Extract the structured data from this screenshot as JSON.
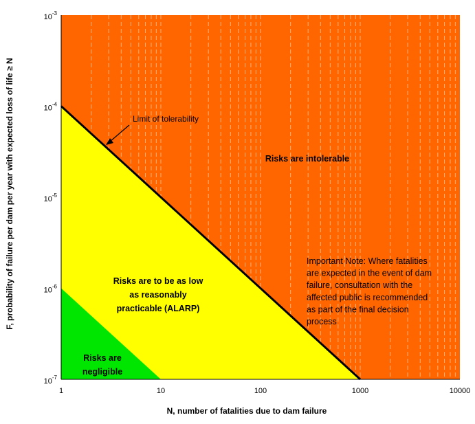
{
  "chart_data": {
    "type": "area",
    "title": "",
    "xlabel": "N, number of fatalities due to dam failure",
    "ylabel": "F, probability of failure per dam per year with expected loss of life ≥ N",
    "x_scale": "log",
    "y_scale": "log",
    "xlim": [
      1,
      10000
    ],
    "ylim": [
      1e-07,
      0.001
    ],
    "x_ticks": [
      1,
      10,
      100,
      1000,
      10000
    ],
    "x_tick_labels": [
      "1",
      "10",
      "100",
      "1000",
      "10000"
    ],
    "y_ticks": [
      1e-07,
      1e-06,
      1e-05,
      0.0001,
      0.001
    ],
    "y_tick_bases": [
      "10",
      "10",
      "10",
      "10",
      "10"
    ],
    "y_tick_exponents": [
      "-7",
      "-6",
      "-5",
      "-4",
      "-3"
    ],
    "grid": "vertical dashed",
    "series": [
      {
        "name": "Limit of tolerability",
        "x": [
          1,
          1000
        ],
        "y": [
          0.0001,
          1e-07
        ]
      },
      {
        "x": [
          1,
          10
        ],
        "y": [
          1e-06,
          1e-07
        ]
      }
    ],
    "regions": [
      {
        "label": "Risks are intolerable",
        "color": "#FF6600"
      },
      {
        "label": "Risks are to be as low as reasonably practicable (ALARP)",
        "lines": [
          "Risks are to be as low",
          "as reasonably",
          "practicable (ALARP)"
        ],
        "color": "#FFFF00"
      },
      {
        "label": "Risks are negligible",
        "lines": [
          "Risks are",
          "negligible"
        ],
        "color": "#00E600"
      }
    ],
    "annotations": [
      {
        "text": "Limit of tolerability"
      },
      {
        "text": "Important Note: Where fatalities are expected in the event of dam failure, consultation with the affected public is recommended as part of the final decision process",
        "lines": [
          "Important Note: Where fatalities",
          "are expected in the event of dam",
          "failure, consultation with the",
          "affected public is recommended",
          "as part of the final decision",
          "process"
        ]
      }
    ]
  }
}
